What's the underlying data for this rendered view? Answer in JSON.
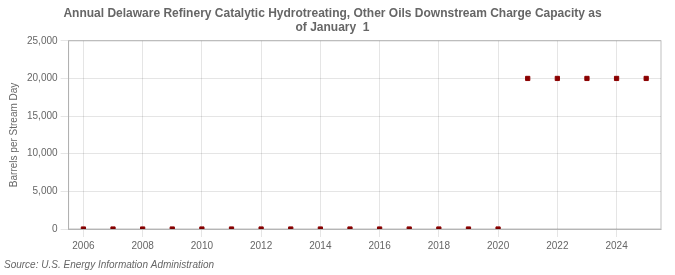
{
  "chart_data": {
    "type": "scatter",
    "title": "Annual Delaware Refinery Catalytic Hydrotreating, Other Oils Downstream Charge Capacity as\nof January  1",
    "ylabel": "Barrels per Stream Day",
    "source": "Source: U.S. Energy Information Administration",
    "x": [
      2006,
      2007,
      2008,
      2009,
      2010,
      2011,
      2012,
      2013,
      2014,
      2015,
      2016,
      2017,
      2018,
      2019,
      2020,
      2021,
      2022,
      2023,
      2024,
      2025
    ],
    "values": [
      0,
      0,
      0,
      0,
      0,
      0,
      0,
      0,
      0,
      0,
      0,
      0,
      0,
      0,
      0,
      20000,
      20000,
      20000,
      20000,
      20000
    ],
    "color": "#8b0000",
    "marker": "square",
    "xlim": [
      2005.5,
      2025.5
    ],
    "xticks": [
      2006,
      2008,
      2010,
      2012,
      2014,
      2016,
      2018,
      2020,
      2022,
      2024
    ],
    "ylim": [
      0,
      25000
    ],
    "yticks": [
      0,
      {
        "value": 5000,
        "label": "5,000"
      },
      {
        "value": 10000,
        "label": "10,000"
      },
      {
        "value": 15000,
        "label": "15,000"
      },
      {
        "value": 20000,
        "label": "20,000"
      },
      {
        "value": 25000,
        "label": "25,000"
      }
    ],
    "grid": true
  }
}
